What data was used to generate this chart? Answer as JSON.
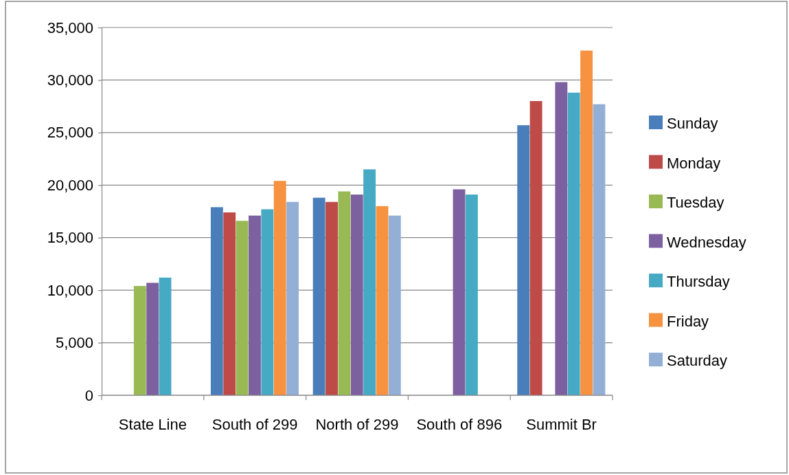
{
  "chart_data": {
    "type": "bar",
    "categories": [
      "State Line",
      "South of 299",
      "North of 299",
      "South of 896",
      "Summit Br"
    ],
    "series": [
      {
        "name": "Sunday",
        "color": "#4a7ebb",
        "values": [
          null,
          17900,
          18800,
          null,
          25700
        ]
      },
      {
        "name": "Monday",
        "color": "#be4b48",
        "values": [
          null,
          17400,
          18400,
          null,
          28000
        ]
      },
      {
        "name": "Tuesday",
        "color": "#98b954",
        "values": [
          10400,
          16600,
          19400,
          null,
          null
        ]
      },
      {
        "name": "Wednesday",
        "color": "#7d60a0",
        "values": [
          10700,
          17100,
          19100,
          19600,
          29800
        ]
      },
      {
        "name": "Thursday",
        "color": "#46aac5",
        "values": [
          11200,
          17700,
          21500,
          19100,
          28800
        ]
      },
      {
        "name": "Friday",
        "color": "#f69240",
        "values": [
          null,
          20400,
          18000,
          null,
          32800
        ]
      },
      {
        "name": "Saturday",
        "color": "#94afd6",
        "values": [
          null,
          18400,
          17100,
          null,
          27700
        ]
      }
    ],
    "ylim": [
      0,
      35000
    ],
    "yticks": [
      {
        "value": 0,
        "label": "0"
      },
      {
        "value": 5000,
        "label": "5,000"
      },
      {
        "value": 10000,
        "label": "10,000"
      },
      {
        "value": 15000,
        "label": "15,000"
      },
      {
        "value": 20000,
        "label": "20,000"
      },
      {
        "value": 25000,
        "label": "25,000"
      },
      {
        "value": 30000,
        "label": "30,000"
      },
      {
        "value": 35000,
        "label": "35,000"
      }
    ],
    "grid": "y",
    "legend": "right"
  }
}
